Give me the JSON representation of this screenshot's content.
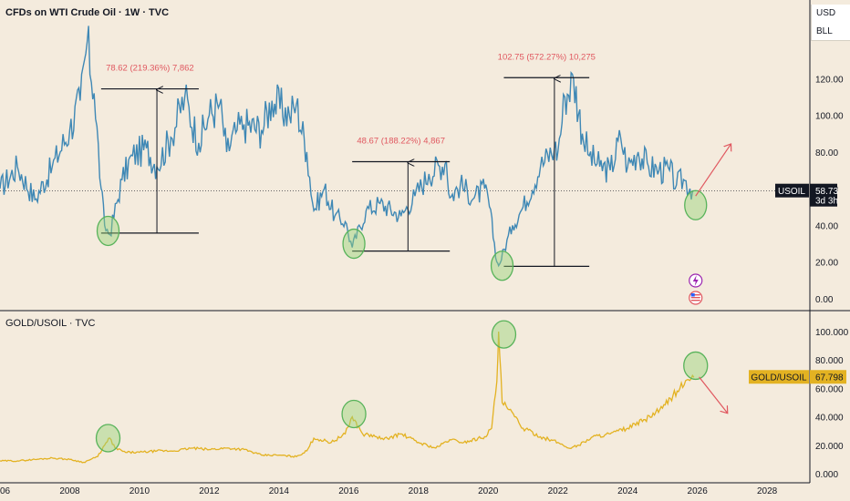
{
  "chart_data": [
    {
      "type": "line",
      "title": "CFDs on WTI Crude Oil · 1W · TVC",
      "series": [
        {
          "name": "USOIL",
          "color": "#3f88b5",
          "points": [
            [
              2006.0,
              60
            ],
            [
              2006.5,
              72
            ],
            [
              2007.0,
              54
            ],
            [
              2007.5,
              72
            ],
            [
              2008.0,
              92
            ],
            [
              2008.3,
              108
            ],
            [
              2008.5,
              140
            ],
            [
              2008.7,
              112
            ],
            [
              2008.9,
              60
            ],
            [
              2009.0,
              40
            ],
            [
              2009.15,
              35
            ],
            [
              2009.5,
              65
            ],
            [
              2009.8,
              78
            ],
            [
              2010.2,
              82
            ],
            [
              2010.5,
              72
            ],
            [
              2010.9,
              88
            ],
            [
              2011.3,
              110
            ],
            [
              2011.7,
              85
            ],
            [
              2012.0,
              100
            ],
            [
              2012.3,
              106
            ],
            [
              2012.5,
              80
            ],
            [
              2012.8,
              92
            ],
            [
              2013.0,
              95
            ],
            [
              2013.5,
              92
            ],
            [
              2013.8,
              108
            ],
            [
              2014.3,
              100
            ],
            [
              2014.5,
              106
            ],
            [
              2014.8,
              80
            ],
            [
              2015.0,
              48
            ],
            [
              2015.3,
              60
            ],
            [
              2015.6,
              45
            ],
            [
              2015.9,
              42
            ],
            [
              2016.1,
              28
            ],
            [
              2016.5,
              48
            ],
            [
              2016.9,
              52
            ],
            [
              2017.5,
              45
            ],
            [
              2017.9,
              56
            ],
            [
              2018.3,
              68
            ],
            [
              2018.8,
              75
            ],
            [
              2018.9,
              55
            ],
            [
              2019.2,
              62
            ],
            [
              2019.6,
              55
            ],
            [
              2019.9,
              60
            ],
            [
              2020.0,
              55
            ],
            [
              2020.25,
              20
            ],
            [
              2020.3,
              18
            ],
            [
              2020.7,
              40
            ],
            [
              2021.0,
              50
            ],
            [
              2021.5,
              72
            ],
            [
              2021.9,
              82
            ],
            [
              2022.0,
              80
            ],
            [
              2022.2,
              110
            ],
            [
              2022.45,
              120
            ],
            [
              2022.7,
              90
            ],
            [
              2022.9,
              78
            ],
            [
              2023.2,
              72
            ],
            [
              2023.5,
              70
            ],
            [
              2023.8,
              88
            ],
            [
              2024.0,
              72
            ],
            [
              2024.3,
              80
            ],
            [
              2024.6,
              72
            ],
            [
              2024.9,
              70
            ],
            [
              2025.2,
              70
            ],
            [
              2025.4,
              62
            ],
            [
              2025.6,
              65
            ],
            [
              2025.9,
              58.73
            ]
          ]
        }
      ],
      "x_ticks": [
        "2006",
        "2008",
        "2010",
        "2012",
        "2014",
        "2016",
        "2018",
        "2020",
        "2022",
        "2024",
        "2026",
        "2028"
      ],
      "y_ticks": [
        "0.00",
        "20.00",
        "40.00",
        "60.00",
        "80.00",
        "100.00",
        "120.00"
      ],
      "ylim": [
        0,
        140
      ],
      "xlim": [
        2006,
        2029.2
      ],
      "last_value": {
        "symbol": "USOIL",
        "price": "58.73",
        "countdown": "3d 3h",
        "value": 58.73
      },
      "measurements": [
        {
          "label": "78.62 (219.36%) 7,862",
          "x0": 2008.9,
          "x1": 2011.7,
          "low": 35.8,
          "high": 114.4,
          "arrow_x": 2010.5
        },
        {
          "label": "48.67 (188.22%) 4,867",
          "x0": 2016.1,
          "x1": 2018.9,
          "low": 26.0,
          "high": 74.7,
          "arrow_x": 2017.7
        },
        {
          "label": "102.75 (572.27%) 10,275",
          "x0": 2020.45,
          "x1": 2022.9,
          "low": 17.7,
          "high": 120.5,
          "arrow_x": 2021.9
        }
      ],
      "highlight_circles": [
        {
          "x": 2009.1,
          "y": 37
        },
        {
          "x": 2016.15,
          "y": 30
        },
        {
          "x": 2020.4,
          "y": 18
        },
        {
          "x": 2025.95,
          "y": 51
        }
      ],
      "projection_arrow": {
        "x0": 2025.95,
        "y0": 56,
        "x1": 2026.95,
        "y1": 84,
        "color": "#e0575f"
      }
    },
    {
      "type": "line",
      "title": "GOLD/USOIL · TVC",
      "series": [
        {
          "name": "GOLD/USOIL",
          "color": "#e3b222",
          "points": [
            [
              2006.0,
              9
            ],
            [
              2006.5,
              9
            ],
            [
              2007.0,
              10
            ],
            [
              2007.5,
              11
            ],
            [
              2008.0,
              10
            ],
            [
              2008.4,
              8
            ],
            [
              2008.8,
              12
            ],
            [
              2009.0,
              20
            ],
            [
              2009.15,
              25
            ],
            [
              2009.3,
              18
            ],
            [
              2009.6,
              15
            ],
            [
              2010.0,
              15
            ],
            [
              2010.5,
              16
            ],
            [
              2011.0,
              16
            ],
            [
              2011.5,
              18
            ],
            [
              2012.0,
              17
            ],
            [
              2012.5,
              18
            ],
            [
              2013.0,
              17
            ],
            [
              2013.5,
              13
            ],
            [
              2014.0,
              13
            ],
            [
              2014.5,
              12
            ],
            [
              2014.8,
              16
            ],
            [
              2015.0,
              25
            ],
            [
              2015.5,
              22
            ],
            [
              2015.9,
              28
            ],
            [
              2016.1,
              40
            ],
            [
              2016.4,
              28
            ],
            [
              2016.8,
              26
            ],
            [
              2017.0,
              24
            ],
            [
              2017.5,
              28
            ],
            [
              2018.0,
              22
            ],
            [
              2018.5,
              18
            ],
            [
              2018.9,
              24
            ],
            [
              2019.3,
              22
            ],
            [
              2019.9,
              26
            ],
            [
              2020.1,
              32
            ],
            [
              2020.25,
              65
            ],
            [
              2020.3,
              100
            ],
            [
              2020.4,
              50
            ],
            [
              2020.6,
              45
            ],
            [
              2021.0,
              32
            ],
            [
              2021.5,
              26
            ],
            [
              2022.0,
              22
            ],
            [
              2022.3,
              18
            ],
            [
              2022.6,
              20
            ],
            [
              2023.0,
              26
            ],
            [
              2023.5,
              28
            ],
            [
              2024.0,
              32
            ],
            [
              2024.5,
              38
            ],
            [
              2025.0,
              46
            ],
            [
              2025.3,
              55
            ],
            [
              2025.5,
              60
            ],
            [
              2025.7,
              66
            ],
            [
              2025.9,
              67.8
            ]
          ]
        }
      ],
      "y_ticks": [
        "0.000",
        "20.000",
        "40.000",
        "60.000",
        "80.000",
        "100.000"
      ],
      "ylim": [
        0,
        110
      ],
      "last_value": {
        "symbol": "GOLD/USOIL",
        "price": "67.798",
        "value": 67.798
      },
      "highlight_circles": [
        {
          "x": 2009.1,
          "y": 25
        },
        {
          "x": 2016.15,
          "y": 42
        },
        {
          "x": 2020.45,
          "y": 98
        },
        {
          "x": 2025.95,
          "y": 76
        }
      ],
      "projection_arrow": {
        "x0": 2026.05,
        "y0": 68,
        "x1": 2026.85,
        "y1": 43,
        "color": "#e0575f"
      }
    }
  ],
  "header": {
    "currency": "USD",
    "unit": "BLL"
  },
  "colors": {
    "background": "#f4ebdd",
    "oil": "#3f88b5",
    "gold_ratio": "#e3b222",
    "annotation": "#e0575f",
    "circle": "#58b35a"
  },
  "icons": [
    "lightning-icon",
    "us-flag-icon"
  ]
}
